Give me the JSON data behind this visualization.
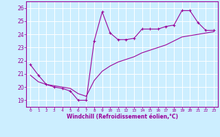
{
  "xlabel": "Windchill (Refroidissement éolien,°C)",
  "bg_color": "#cceeff",
  "line_color": "#990099",
  "grid_color": "#ffffff",
  "xlim": [
    -0.5,
    23.5
  ],
  "ylim": [
    18.5,
    26.5
  ],
  "xticks": [
    0,
    1,
    2,
    3,
    4,
    5,
    6,
    7,
    8,
    9,
    10,
    11,
    12,
    13,
    14,
    15,
    16,
    17,
    18,
    19,
    20,
    21,
    22,
    23
  ],
  "yticks": [
    19,
    20,
    21,
    22,
    23,
    24,
    25,
    26
  ],
  "series1_x": [
    0,
    1,
    2,
    3,
    4,
    5,
    6,
    7,
    8,
    9,
    10,
    11,
    12,
    13,
    14,
    15,
    16,
    17,
    18,
    19,
    20,
    21,
    22,
    23
  ],
  "series1_y": [
    21.7,
    20.9,
    20.2,
    20.0,
    19.9,
    19.7,
    19.0,
    19.0,
    23.5,
    25.7,
    24.1,
    23.6,
    23.6,
    23.7,
    24.4,
    24.4,
    24.4,
    24.6,
    24.7,
    25.8,
    25.8,
    24.9,
    24.3,
    24.3
  ],
  "series2_x": [
    0,
    1,
    2,
    3,
    4,
    5,
    6,
    7,
    8,
    9,
    10,
    11,
    12,
    13,
    14,
    15,
    16,
    17,
    18,
    19,
    20,
    21,
    22,
    23
  ],
  "series2_y": [
    20.9,
    20.4,
    20.2,
    20.1,
    20.0,
    19.9,
    19.5,
    19.3,
    20.5,
    21.2,
    21.6,
    21.9,
    22.1,
    22.3,
    22.6,
    22.8,
    23.0,
    23.2,
    23.5,
    23.8,
    23.9,
    24.0,
    24.1,
    24.2
  ]
}
